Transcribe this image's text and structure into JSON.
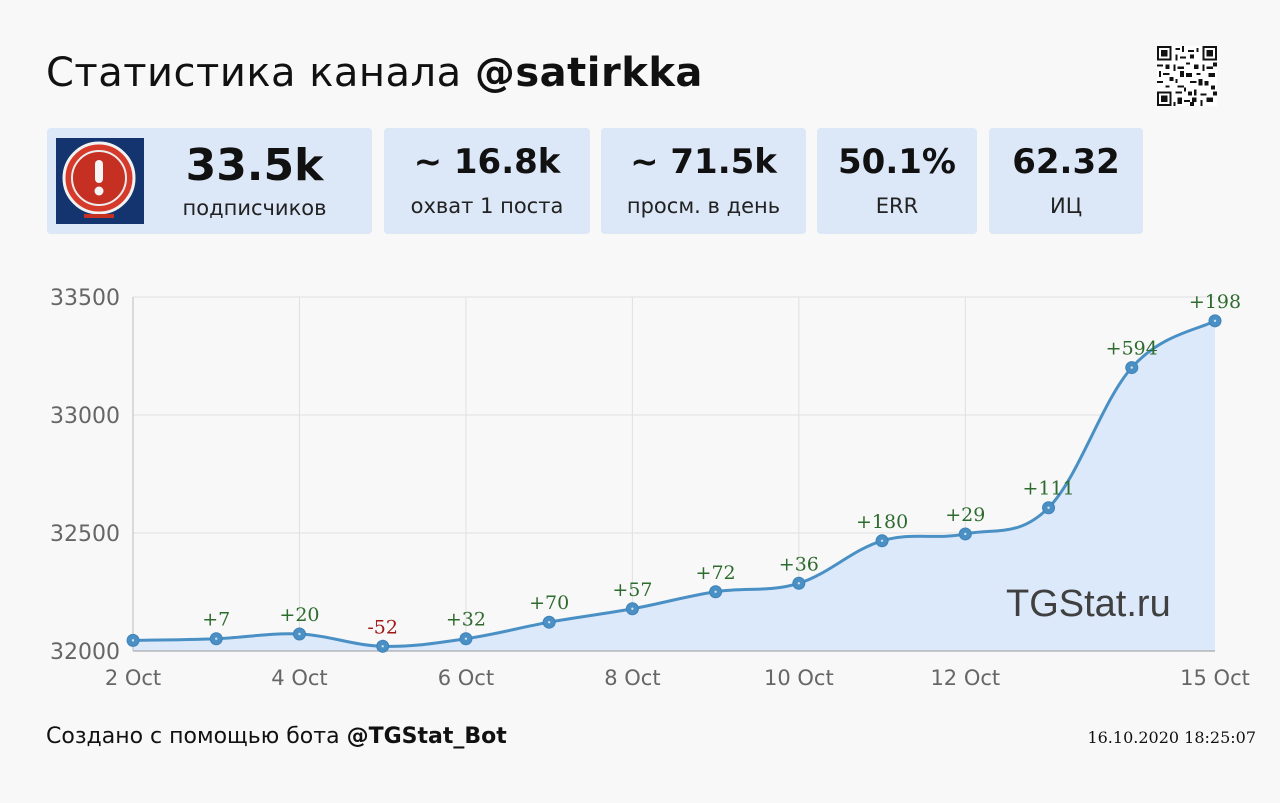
{
  "header": {
    "title_prefix": "Статистика канала",
    "channel": "@satirkka"
  },
  "stats": [
    {
      "value": "33.5k",
      "label": "подписчиков"
    },
    {
      "value": "~ 16.8k",
      "label": "охват 1 поста"
    },
    {
      "value": "~ 71.5k",
      "label": "просм. в день"
    },
    {
      "value": "50.1%",
      "label": "ERR"
    },
    {
      "value": "62.32",
      "label": "ИЦ"
    }
  ],
  "chart_data": {
    "type": "area",
    "x": [
      "2 Oct",
      "3 Oct",
      "4 Oct",
      "5 Oct",
      "6 Oct",
      "7 Oct",
      "8 Oct",
      "9 Oct",
      "10 Oct",
      "11 Oct",
      "12 Oct",
      "13 Oct",
      "14 Oct",
      "15 Oct"
    ],
    "x_tick_labels": [
      "2 Oct",
      "4 Oct",
      "6 Oct",
      "8 Oct",
      "10 Oct",
      "12 Oct",
      "15 Oct"
    ],
    "y_ticks": [
      "33500",
      "33000",
      "32500",
      "32000"
    ],
    "ylim": [
      32000,
      33500
    ],
    "series": [
      {
        "values": [
          32045,
          32052,
          32072,
          32020,
          32052,
          32122,
          32179,
          32251,
          32287,
          32467,
          32496,
          32607,
          33201,
          33399
        ],
        "delta_labels": [
          "",
          "+7",
          "+20",
          "-52",
          "+32",
          "+70",
          "+57",
          "+72",
          "+36",
          "+180",
          "+29",
          "+111",
          "+594",
          "+198"
        ]
      }
    ],
    "colors": {
      "line": "#4a90c4",
      "fill": "#dce9fb",
      "positive": "#2e6b2e",
      "negative": "#a01818"
    },
    "grid": true
  },
  "watermark": "TGStat.ru",
  "footer": {
    "text": "Создано с помощью бота",
    "bot": "@TGStat_Bot",
    "timestamp": "16.10.2020 18:25:07"
  }
}
